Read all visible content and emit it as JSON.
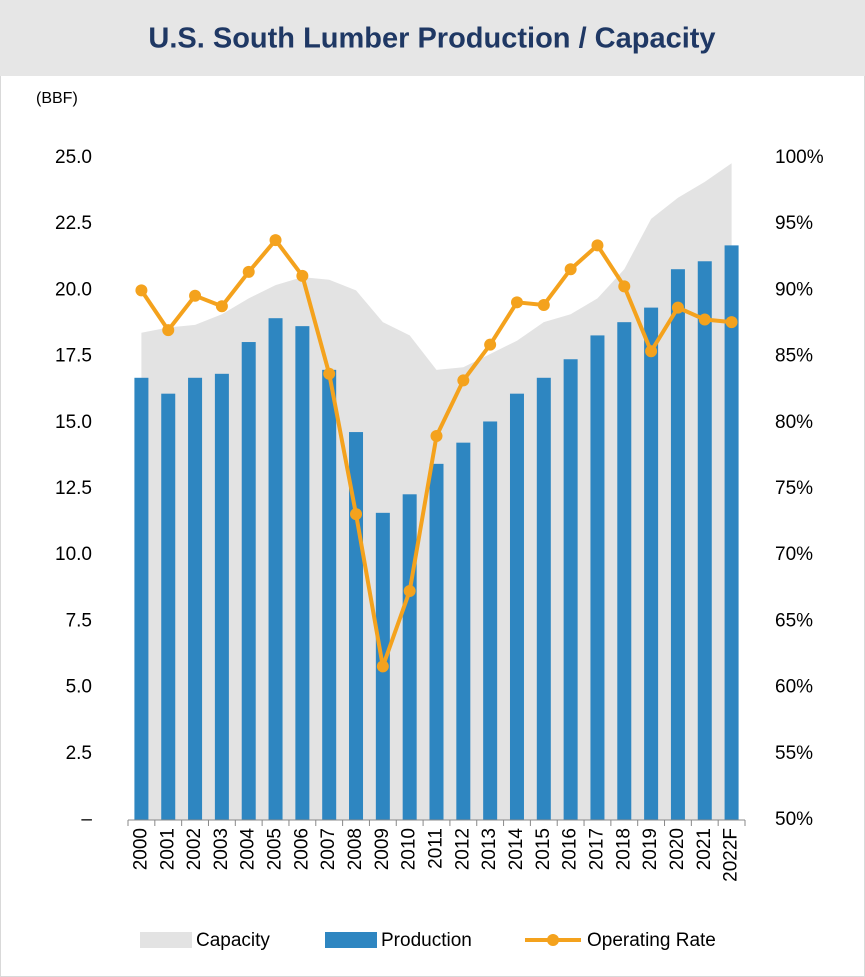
{
  "chart_data": {
    "type": "bar-line-area",
    "title": "U.S. South Lumber Production / Capacity",
    "y_axis_label": "(BBF)",
    "categories": [
      "2000",
      "2001",
      "2002",
      "2003",
      "2004",
      "2005",
      "2006",
      "2007",
      "2008",
      "2009",
      "2010",
      "2011",
      "2012",
      "2013",
      "2014",
      "2015",
      "2016",
      "2017",
      "2018",
      "2019",
      "2020",
      "2021",
      "2022F"
    ],
    "series": [
      {
        "name": "Capacity",
        "type": "area",
        "color": "#e3e3e3",
        "values": [
          18.4,
          18.6,
          18.7,
          19.1,
          19.7,
          20.2,
          20.5,
          20.4,
          20.0,
          18.8,
          18.3,
          17.0,
          17.1,
          17.6,
          18.1,
          18.8,
          19.1,
          19.7,
          20.8,
          22.7,
          23.5,
          24.1,
          24.8
        ]
      },
      {
        "name": "Production",
        "type": "bar",
        "color": "#2e86c1",
        "values": [
          16.7,
          16.1,
          16.7,
          16.85,
          18.05,
          18.95,
          18.65,
          17.0,
          14.65,
          11.6,
          12.3,
          13.45,
          14.25,
          15.05,
          16.1,
          16.7,
          17.4,
          18.3,
          18.8,
          19.35,
          20.8,
          21.1,
          21.7
        ]
      },
      {
        "name": "Operating Rate",
        "type": "line",
        "axis": "y2",
        "color": "#f4a21d",
        "values": [
          90,
          87,
          89.6,
          88.8,
          91.4,
          93.8,
          91.1,
          83.7,
          73.1,
          61.6,
          67.3,
          79,
          83.2,
          85.9,
          89.1,
          88.9,
          91.6,
          93.4,
          90.3,
          85.4,
          88.7,
          87.8,
          87.6
        ]
      }
    ],
    "ylim": [
      0,
      25
    ],
    "yticks": [
      {
        "value": 0,
        "label": "–"
      },
      {
        "value": 2.5,
        "label": "2.5"
      },
      {
        "value": 5,
        "label": "5.0"
      },
      {
        "value": 7.5,
        "label": "7.5"
      },
      {
        "value": 10,
        "label": "10.0"
      },
      {
        "value": 12.5,
        "label": "12.5"
      },
      {
        "value": 15,
        "label": "15.0"
      },
      {
        "value": 17.5,
        "label": "17.5"
      },
      {
        "value": 20,
        "label": "20.0"
      },
      {
        "value": 22.5,
        "label": "22.5"
      },
      {
        "value": 25,
        "label": "25.0"
      }
    ],
    "y2lim": [
      50,
      100
    ],
    "y2ticks": [
      {
        "value": 50,
        "label": "50%"
      },
      {
        "value": 55,
        "label": "55%"
      },
      {
        "value": 60,
        "label": "60%"
      },
      {
        "value": 65,
        "label": "65%"
      },
      {
        "value": 70,
        "label": "70%"
      },
      {
        "value": 75,
        "label": "75%"
      },
      {
        "value": 80,
        "label": "80%"
      },
      {
        "value": 85,
        "label": "85%"
      },
      {
        "value": 90,
        "label": "90%"
      },
      {
        "value": 95,
        "label": "95%"
      },
      {
        "value": 100,
        "label": "100%"
      }
    ],
    "legend": "bottom"
  }
}
